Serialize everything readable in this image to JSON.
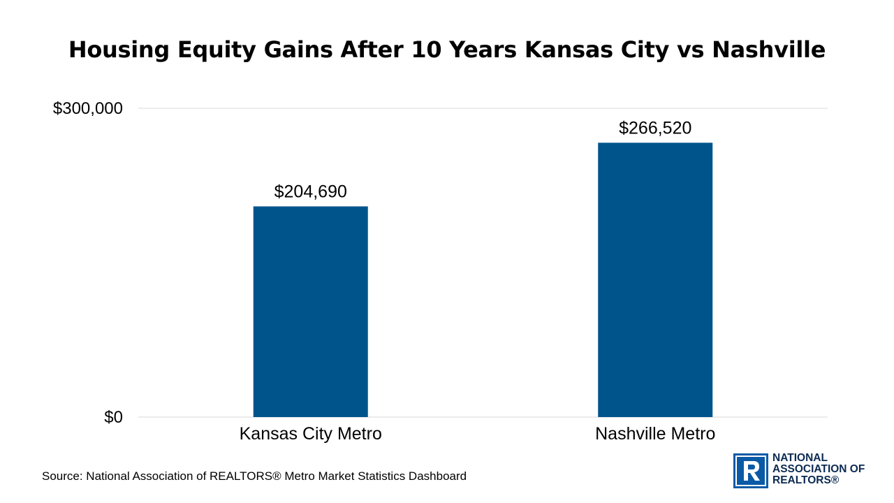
{
  "title": "Housing Equity Gains After 10 Years Kansas City vs Nashville",
  "source": "Source: National Association of REALTORS® Metro Market Statistics Dashboard",
  "logo": {
    "lines": [
      "NATIONAL",
      "ASSOCIATION OF",
      "REALTORS®"
    ],
    "mark_icon": "realtor-r-logo-icon",
    "color": "#0a5aa6"
  },
  "colors": {
    "bar": "#00548c",
    "grid": "#d9d9d9"
  },
  "chart_data": {
    "type": "bar",
    "title": "Housing Equity Gains After 10 Years Kansas City vs Nashville",
    "categories": [
      "Kansas City Metro",
      "Nashville Metro"
    ],
    "values": [
      204690,
      266520
    ],
    "data_labels": [
      "$204,690",
      "$266,520"
    ],
    "ylim": [
      0,
      300000
    ],
    "yticks": [
      0,
      300000
    ],
    "ytick_labels": [
      "$0",
      "$300,000"
    ],
    "xlabel": "",
    "ylabel": "",
    "grid": true,
    "legend": "none"
  }
}
